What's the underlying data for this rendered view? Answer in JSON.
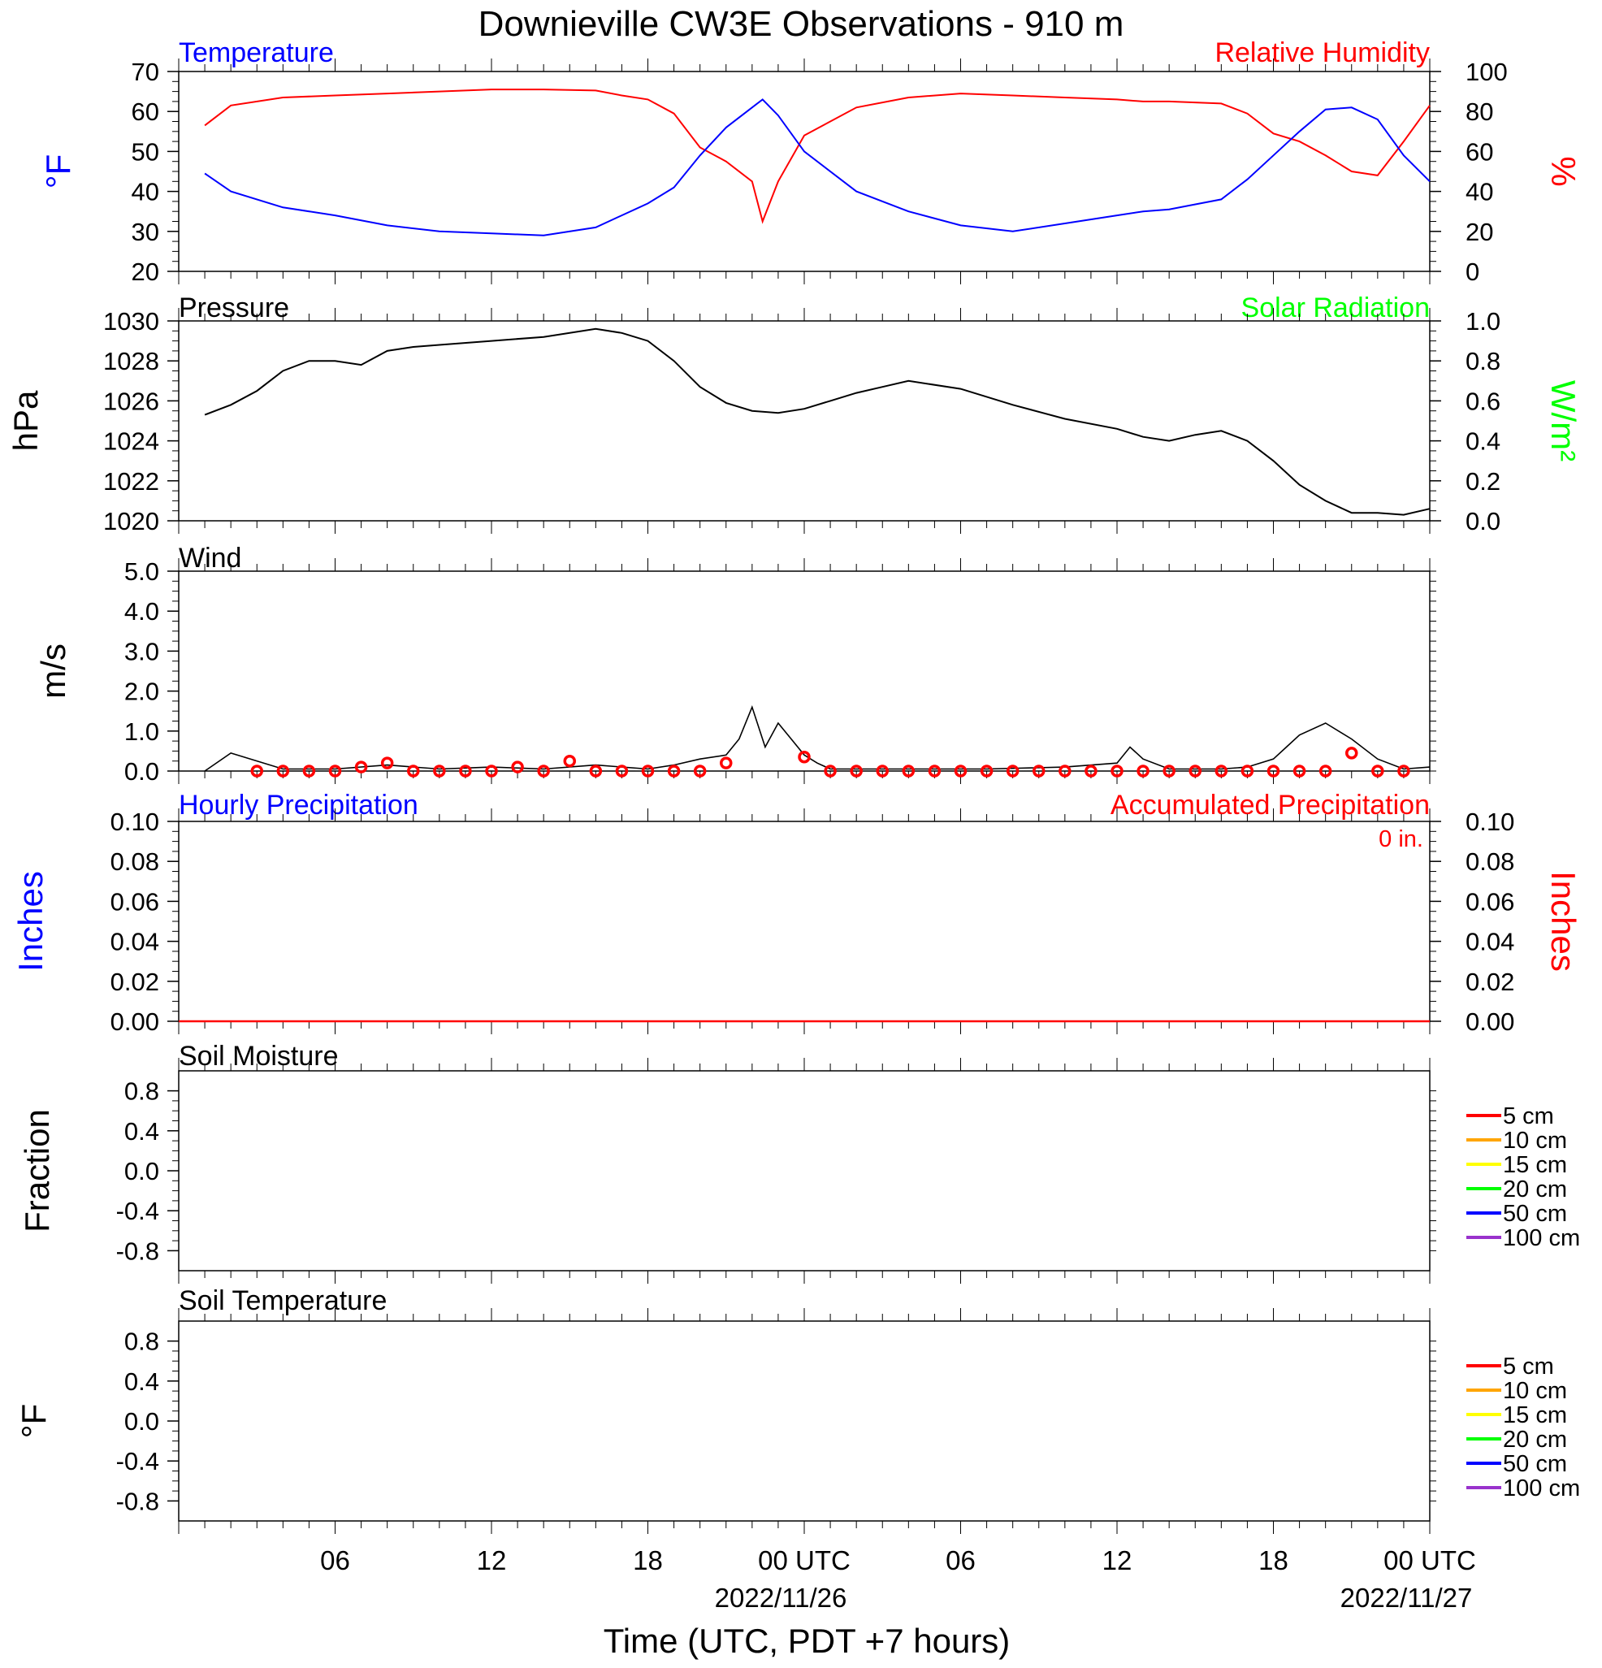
{
  "title": "Downieville CW3E Observations - 910 m",
  "x_axis": {
    "label": "Time (UTC, PDT +7 hours)",
    "ticks": [
      "06",
      "12",
      "18",
      "00 UTC",
      "06",
      "12",
      "18",
      "00 UTC"
    ],
    "dates": [
      "2022/11/26",
      "2022/11/27"
    ]
  },
  "colors": {
    "temperature": "#0000ff",
    "humidity": "#ff0000",
    "solar": "#00ff00",
    "black": "#000000",
    "5cm": "#ff0000",
    "10cm": "#ffa500",
    "15cm": "#ffff00",
    "20cm": "#00ff00",
    "50cm": "#0000ff",
    "100cm": "#9932cc"
  },
  "panels": {
    "temp_rh": {
      "left_title": "Temperature",
      "right_title": "Relative Humidity",
      "left_unit": "°F",
      "right_unit": "%",
      "left_ticks": [
        "70",
        "60",
        "50",
        "40",
        "30",
        "20"
      ],
      "right_ticks": [
        "100",
        "80",
        "60",
        "40",
        "20",
        "0"
      ]
    },
    "pressure": {
      "left_title": "Pressure",
      "right_title": "Solar Radiation",
      "left_unit": "hPa",
      "right_unit": "W/m²",
      "left_ticks": [
        "1030",
        "1028",
        "1026",
        "1024",
        "1022",
        "1020"
      ],
      "right_ticks": [
        "1.0",
        "0.8",
        "0.6",
        "0.4",
        "0.2",
        "0.0"
      ]
    },
    "wind": {
      "left_title": "Wind",
      "left_unit": "m/s",
      "left_ticks": [
        "5.0",
        "4.0",
        "3.0",
        "2.0",
        "1.0",
        "0.0"
      ]
    },
    "precip": {
      "left_title": "Hourly Precipitation",
      "right_title": "Accumulated Precipitation",
      "total": "0 in.",
      "left_unit": "Inches",
      "right_unit": "Inches",
      "left_ticks": [
        "0.10",
        "0.08",
        "0.06",
        "0.04",
        "0.02",
        "0.00"
      ],
      "right_ticks": [
        "0.10",
        "0.08",
        "0.06",
        "0.04",
        "0.02",
        "0.00"
      ]
    },
    "soil_moisture": {
      "left_title": "Soil Moisture",
      "left_unit": "Fraction",
      "left_ticks": [
        "0.8",
        "0.4",
        "0.0",
        "-0.4",
        "-0.8"
      ],
      "legend": [
        "5 cm",
        "10 cm",
        "15 cm",
        "20 cm",
        "50 cm",
        "100 cm"
      ]
    },
    "soil_temp": {
      "left_title": "Soil Temperature",
      "left_unit": "°F",
      "left_ticks": [
        "0.8",
        "0.4",
        "0.0",
        "-0.4",
        "-0.8"
      ],
      "legend": [
        "5 cm",
        "10 cm",
        "15 cm",
        "20 cm",
        "50 cm",
        "100 cm"
      ]
    }
  },
  "chart_data": [
    {
      "type": "line",
      "panel": "Temperature / Relative Humidity",
      "x_hours_utc": [
        1,
        2,
        4,
        6,
        8,
        10,
        12,
        14,
        16,
        17,
        18,
        19,
        20,
        21,
        22,
        22.4,
        23,
        24,
        26,
        28,
        30,
        32,
        34,
        36,
        37,
        38,
        40,
        41,
        42,
        43,
        44,
        45,
        46,
        47,
        48
      ],
      "series": [
        {
          "name": "Temperature",
          "axis": "left",
          "unit": "°F",
          "ylim": [
            20,
            70
          ],
          "values": [
            44.5,
            40,
            36,
            34,
            31.5,
            30,
            29.5,
            29,
            31,
            34,
            37,
            41,
            49,
            56,
            61,
            63,
            59,
            50,
            40,
            35,
            31.5,
            30,
            32,
            34,
            35,
            35.5,
            38,
            43,
            49,
            55,
            60.5,
            61,
            58,
            49,
            42.5
          ]
        },
        {
          "name": "Relative Humidity",
          "axis": "right",
          "unit": "%",
          "ylim": [
            0,
            100
          ],
          "values": [
            73,
            83,
            87,
            88,
            89,
            90,
            91,
            91,
            90.5,
            88,
            86,
            79,
            62,
            55,
            45,
            25,
            45,
            68,
            82,
            87,
            89,
            88,
            87,
            86,
            85,
            85,
            84,
            79,
            69,
            65,
            58,
            50,
            48,
            65,
            83
          ]
        }
      ]
    },
    {
      "type": "line",
      "panel": "Pressure",
      "x_hours_utc": [
        1,
        2,
        3,
        4,
        5,
        6,
        7,
        8,
        9,
        10,
        12,
        14,
        16,
        17,
        18,
        19,
        20,
        21,
        22,
        23,
        24,
        25,
        26,
        27,
        28,
        30,
        32,
        34,
        36,
        37,
        38,
        39,
        40,
        41,
        42,
        43,
        44,
        45,
        46,
        47,
        48
      ],
      "series": [
        {
          "name": "Pressure",
          "unit": "hPa",
          "ylim": [
            1020,
            1030
          ],
          "values": [
            1025.3,
            1025.8,
            1026.5,
            1027.5,
            1028.0,
            1028.0,
            1027.8,
            1028.5,
            1028.7,
            1028.8,
            1029.0,
            1029.2,
            1029.6,
            1029.4,
            1029.0,
            1028.0,
            1026.7,
            1025.9,
            1025.5,
            1025.4,
            1025.6,
            1026.0,
            1026.4,
            1026.7,
            1027.0,
            1026.6,
            1025.8,
            1025.1,
            1024.6,
            1024.2,
            1024.0,
            1024.3,
            1024.5,
            1024.0,
            1023.0,
            1021.8,
            1021.0,
            1020.4,
            1020.4,
            1020.3,
            1020.6
          ]
        }
      ]
    },
    {
      "type": "line",
      "panel": "Wind",
      "ylim": [
        0,
        5
      ],
      "x_hours_utc": [
        1,
        2,
        4,
        6,
        8,
        10,
        12,
        14,
        16,
        18,
        19,
        20,
        21,
        21.5,
        22,
        22.5,
        23,
        23.5,
        24,
        24.5,
        25,
        28,
        31,
        34,
        36,
        36.5,
        37,
        38,
        40,
        41,
        42,
        42.5,
        43,
        44,
        45,
        46,
        47,
        48
      ],
      "series": [
        {
          "name": "Wind",
          "values": [
            0,
            0.45,
            0.05,
            0.05,
            0.15,
            0.05,
            0.1,
            0.05,
            0.15,
            0.05,
            0.15,
            0.3,
            0.4,
            0.8,
            1.6,
            0.6,
            1.2,
            0.8,
            0.4,
            0.2,
            0.05,
            0.05,
            0.05,
            0.1,
            0.2,
            0.6,
            0.3,
            0.05,
            0.05,
            0.1,
            0.3,
            0.6,
            0.9,
            1.2,
            0.8,
            0.3,
            0.05,
            0.1
          ]
        }
      ],
      "gust_markers_x_hours": [
        3,
        4,
        5,
        6,
        7,
        8,
        9,
        10,
        11,
        12,
        13,
        14,
        15,
        16,
        17,
        18,
        19,
        20,
        21,
        24,
        25,
        26,
        27,
        28,
        29,
        30,
        31,
        32,
        33,
        34,
        35,
        36,
        37,
        38,
        39,
        40,
        41,
        42,
        43,
        44,
        45,
        46,
        47
      ],
      "gust_markers_values": [
        0,
        0,
        0,
        0,
        0.1,
        0.2,
        0,
        0,
        0,
        0,
        0.1,
        0,
        0.25,
        0,
        0,
        0,
        0,
        0,
        0.2,
        0.35,
        0,
        0,
        0,
        0,
        0,
        0,
        0,
        0,
        0,
        0,
        0,
        0,
        0,
        0,
        0,
        0,
        0,
        0,
        0,
        0,
        0.45,
        0,
        0
      ]
    },
    {
      "type": "line",
      "panel": "Precipitation",
      "ylim": [
        0,
        0.1
      ],
      "series": [
        {
          "name": "Hourly Precipitation",
          "values": [
            0,
            0
          ]
        },
        {
          "name": "Accumulated Precipitation",
          "values": [
            0,
            0
          ]
        }
      ],
      "x_hours_utc": [
        0,
        48
      ]
    },
    {
      "type": "line",
      "panel": "Soil Moisture",
      "ylim": [
        -1,
        1
      ],
      "series": []
    },
    {
      "type": "line",
      "panel": "Soil Temperature",
      "ylim": [
        -1,
        1
      ],
      "series": []
    }
  ]
}
